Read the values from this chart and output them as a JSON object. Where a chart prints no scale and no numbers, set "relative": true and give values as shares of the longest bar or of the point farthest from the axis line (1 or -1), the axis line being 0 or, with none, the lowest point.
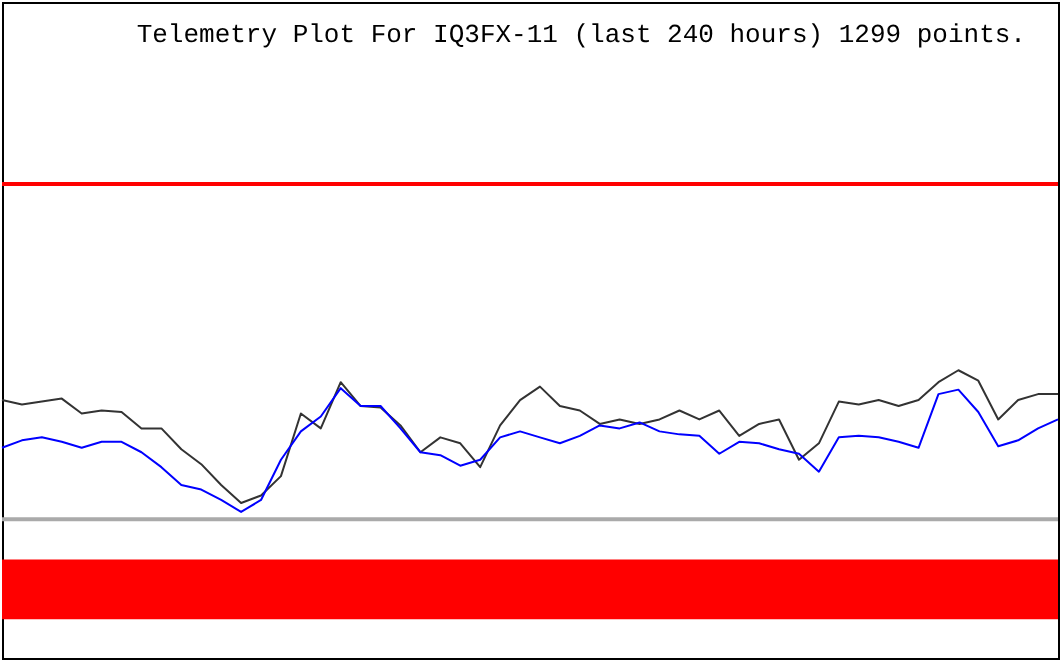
{
  "chart_data": {
    "type": "line",
    "title": "Telemetry Plot For IQ3FX-11 (last 240 hours) 1299 points.",
    "relative": true,
    "categories": [
      null,
      null,
      null,
      null,
      null,
      null,
      null,
      null,
      null,
      null,
      null,
      null,
      null,
      null,
      null,
      null,
      null,
      null,
      null,
      null,
      null,
      null,
      null,
      null,
      null,
      null,
      null,
      null,
      null,
      null,
      null,
      null,
      null,
      null,
      null,
      null,
      null,
      null,
      null,
      null,
      null,
      null,
      null,
      null,
      null,
      null,
      null,
      null,
      null,
      null,
      null,
      null,
      null,
      null
    ],
    "series": [
      {
        "color": "#333333",
        "values": [
          0.8,
          0.77,
          0.79,
          0.81,
          0.71,
          0.73,
          0.72,
          0.61,
          0.61,
          0.47,
          0.37,
          0.23,
          0.11,
          0.16,
          0.29,
          0.71,
          0.61,
          0.92,
          0.76,
          0.75,
          0.63,
          0.45,
          0.55,
          0.51,
          0.35,
          0.63,
          0.8,
          0.89,
          0.76,
          0.73,
          0.64,
          0.67,
          0.64,
          0.67,
          0.73,
          0.67,
          0.73,
          0.56,
          0.64,
          0.67,
          0.4,
          0.51,
          0.79,
          0.77,
          0.8,
          0.76,
          0.8,
          0.92,
          1,
          0.93,
          0.67,
          0.8,
          0.84,
          0.84
        ]
      },
      {
        "color": "#0000ff",
        "values": [
          0.48,
          0.53,
          0.55,
          0.52,
          0.48,
          0.52,
          0.52,
          0.45,
          0.35,
          0.23,
          0.2,
          0.13,
          0.05,
          0.13,
          0.4,
          0.59,
          0.69,
          0.88,
          0.76,
          0.76,
          0.61,
          0.45,
          0.43,
          0.36,
          0.4,
          0.55,
          0.59,
          0.55,
          0.51,
          0.56,
          0.63,
          0.61,
          0.65,
          0.59,
          0.57,
          0.56,
          0.44,
          0.52,
          0.51,
          0.47,
          0.44,
          0.32,
          0.55,
          0.56,
          0.55,
          0.52,
          0.48,
          0.84,
          0.87,
          0.72,
          0.49,
          0.53,
          0.61,
          0.67
        ]
      }
    ],
    "ref_lines": [
      {
        "axis": "y",
        "value": 2.25,
        "color": "#ff0000"
      }
    ],
    "bands": [
      {
        "axis": "y",
        "from": -0.67,
        "to": -0.27,
        "color": "#ff0000"
      }
    ],
    "line_style": "solid",
    "marker": "none"
  }
}
